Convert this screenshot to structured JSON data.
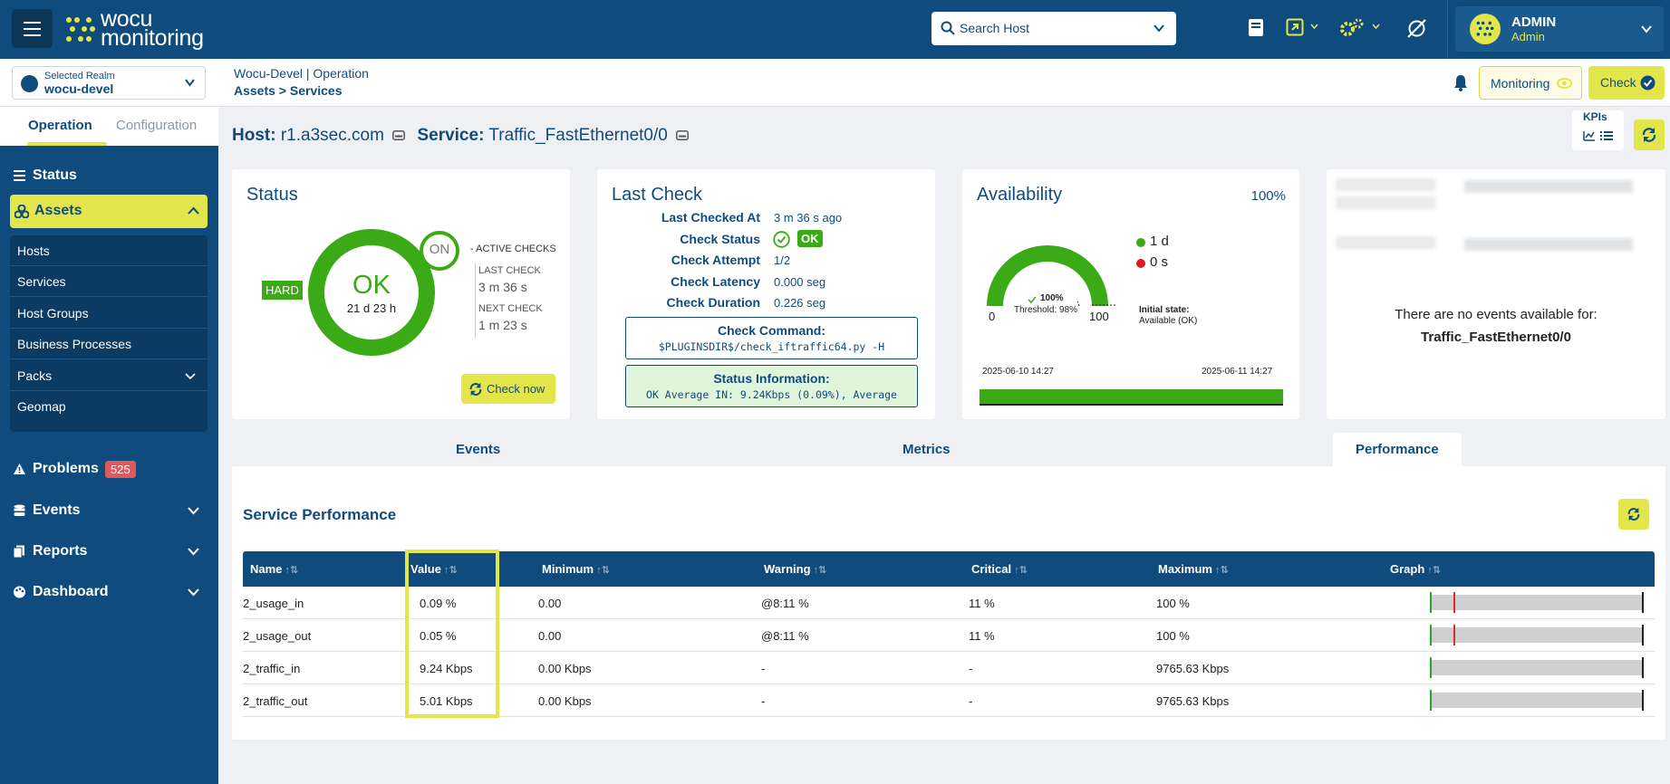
{
  "topbar": {
    "logo_line1": "wocu",
    "logo_line2": "monitoring",
    "search_placeholder": "Search Host",
    "user": {
      "name": "ADMIN",
      "role": "Admin"
    }
  },
  "subheader": {
    "realm_label": "Selected Realm",
    "realm_value": "wocu-devel",
    "breadcrumb_top": "Wocu-Devel | Operation",
    "breadcrumb_bottom": "Assets > Services",
    "monitoring_label": "Monitoring",
    "check_label": "Check"
  },
  "sidebar": {
    "tabs": [
      "Operation",
      "Configuration"
    ],
    "items": {
      "status": "Status",
      "assets": "Assets",
      "problems": "Problems",
      "problems_count": "525",
      "events": "Events",
      "reports": "Reports",
      "dashboard": "Dashboard"
    },
    "assets_sub": [
      "Hosts",
      "Services",
      "Host Groups",
      "Business Processes",
      "Packs",
      "Geomap"
    ]
  },
  "header": {
    "host_label": "Host:",
    "host_value": "r1.a3sec.com",
    "service_label": "Service:",
    "service_value": "Traffic_FastEthernet0/0",
    "kpis_label": "KPIs"
  },
  "status_card": {
    "title": "Status",
    "state_type": "HARD",
    "state": "OK",
    "duration": "21 d 23 h",
    "active_checks_state": "ON",
    "active_checks_label": "ACTIVE CHECKS",
    "last_check_label": "LAST CHECK",
    "last_check_value": "3 m 36 s",
    "next_check_label": "NEXT CHECK",
    "next_check_value": "1 m 23 s",
    "check_now_label": "Check now"
  },
  "last_check_card": {
    "title": "Last Check",
    "rows": [
      {
        "label": "Last Checked At",
        "value": "3 m 36 s ago"
      },
      {
        "label": "Check Status",
        "value": "OK"
      },
      {
        "label": "Check Attempt",
        "value": "1/2"
      },
      {
        "label": "Check Latency",
        "value": "0.000 seg"
      },
      {
        "label": "Check Duration",
        "value": "0.226 seg"
      }
    ],
    "command_title": "Check Command:",
    "command_text": "$PLUGINSDIR$/check_iftraffic64.py -H",
    "status_info_title": "Status Information:",
    "status_info_text": "OK Average IN: 9.24Kbps (0.09%), Average"
  },
  "availability_card": {
    "title": "Availability",
    "percent": "100%",
    "gauge_value": "100%",
    "threshold": "Threshold: 98%",
    "gauge_min": "0",
    "gauge_max": "100",
    "legend": [
      {
        "label": "1 d",
        "color": "#3aaa16"
      },
      {
        "label": "0 s",
        "color": "#e0181f"
      }
    ],
    "initial_state_label": "Initial state:",
    "initial_state_value": "Available (OK)",
    "date_start": "2025-06-10 14:27",
    "date_end": "2025-06-11 14:27"
  },
  "events_card": {
    "message": "There are no events available for:",
    "service": "Traffic_FastEthernet0/0"
  },
  "tabs": [
    "Events",
    "Metrics",
    "Performance"
  ],
  "performance": {
    "title": "Service Performance",
    "columns": [
      "Name",
      "Value",
      "Minimum",
      "Warning",
      "Critical",
      "Maximum",
      "Graph"
    ],
    "rows": [
      {
        "name": "2_usage_in",
        "value": "0.09 %",
        "min": "0.00",
        "warning": "@8:11 %",
        "critical": "11 %",
        "max": "100 %",
        "graph": {
          "level": 0.0009,
          "warning": 0.08,
          "critical": 0.11
        }
      },
      {
        "name": "2_usage_out",
        "value": "0.05 %",
        "min": "0.00",
        "warning": "@8:11 %",
        "critical": "11 %",
        "max": "100 %",
        "graph": {
          "level": 0.0005,
          "warning": 0.08,
          "critical": 0.11
        }
      },
      {
        "name": "2_traffic_in",
        "value": "9.24 Kbps",
        "min": "0.00 Kbps",
        "warning": "-",
        "critical": "-",
        "max": "9765.63 Kbps",
        "graph": {
          "level": 0.0009
        }
      },
      {
        "name": "2_traffic_out",
        "value": "5.01 Kbps",
        "min": "0.00 Kbps",
        "warning": "-",
        "critical": "-",
        "max": "9765.63 Kbps",
        "graph": {
          "level": 0.0005
        }
      }
    ]
  },
  "colors": {
    "primary": "#0f4c7d",
    "accent": "#e3e64a",
    "ok": "#3aaa16",
    "critical": "#e0181f"
  }
}
